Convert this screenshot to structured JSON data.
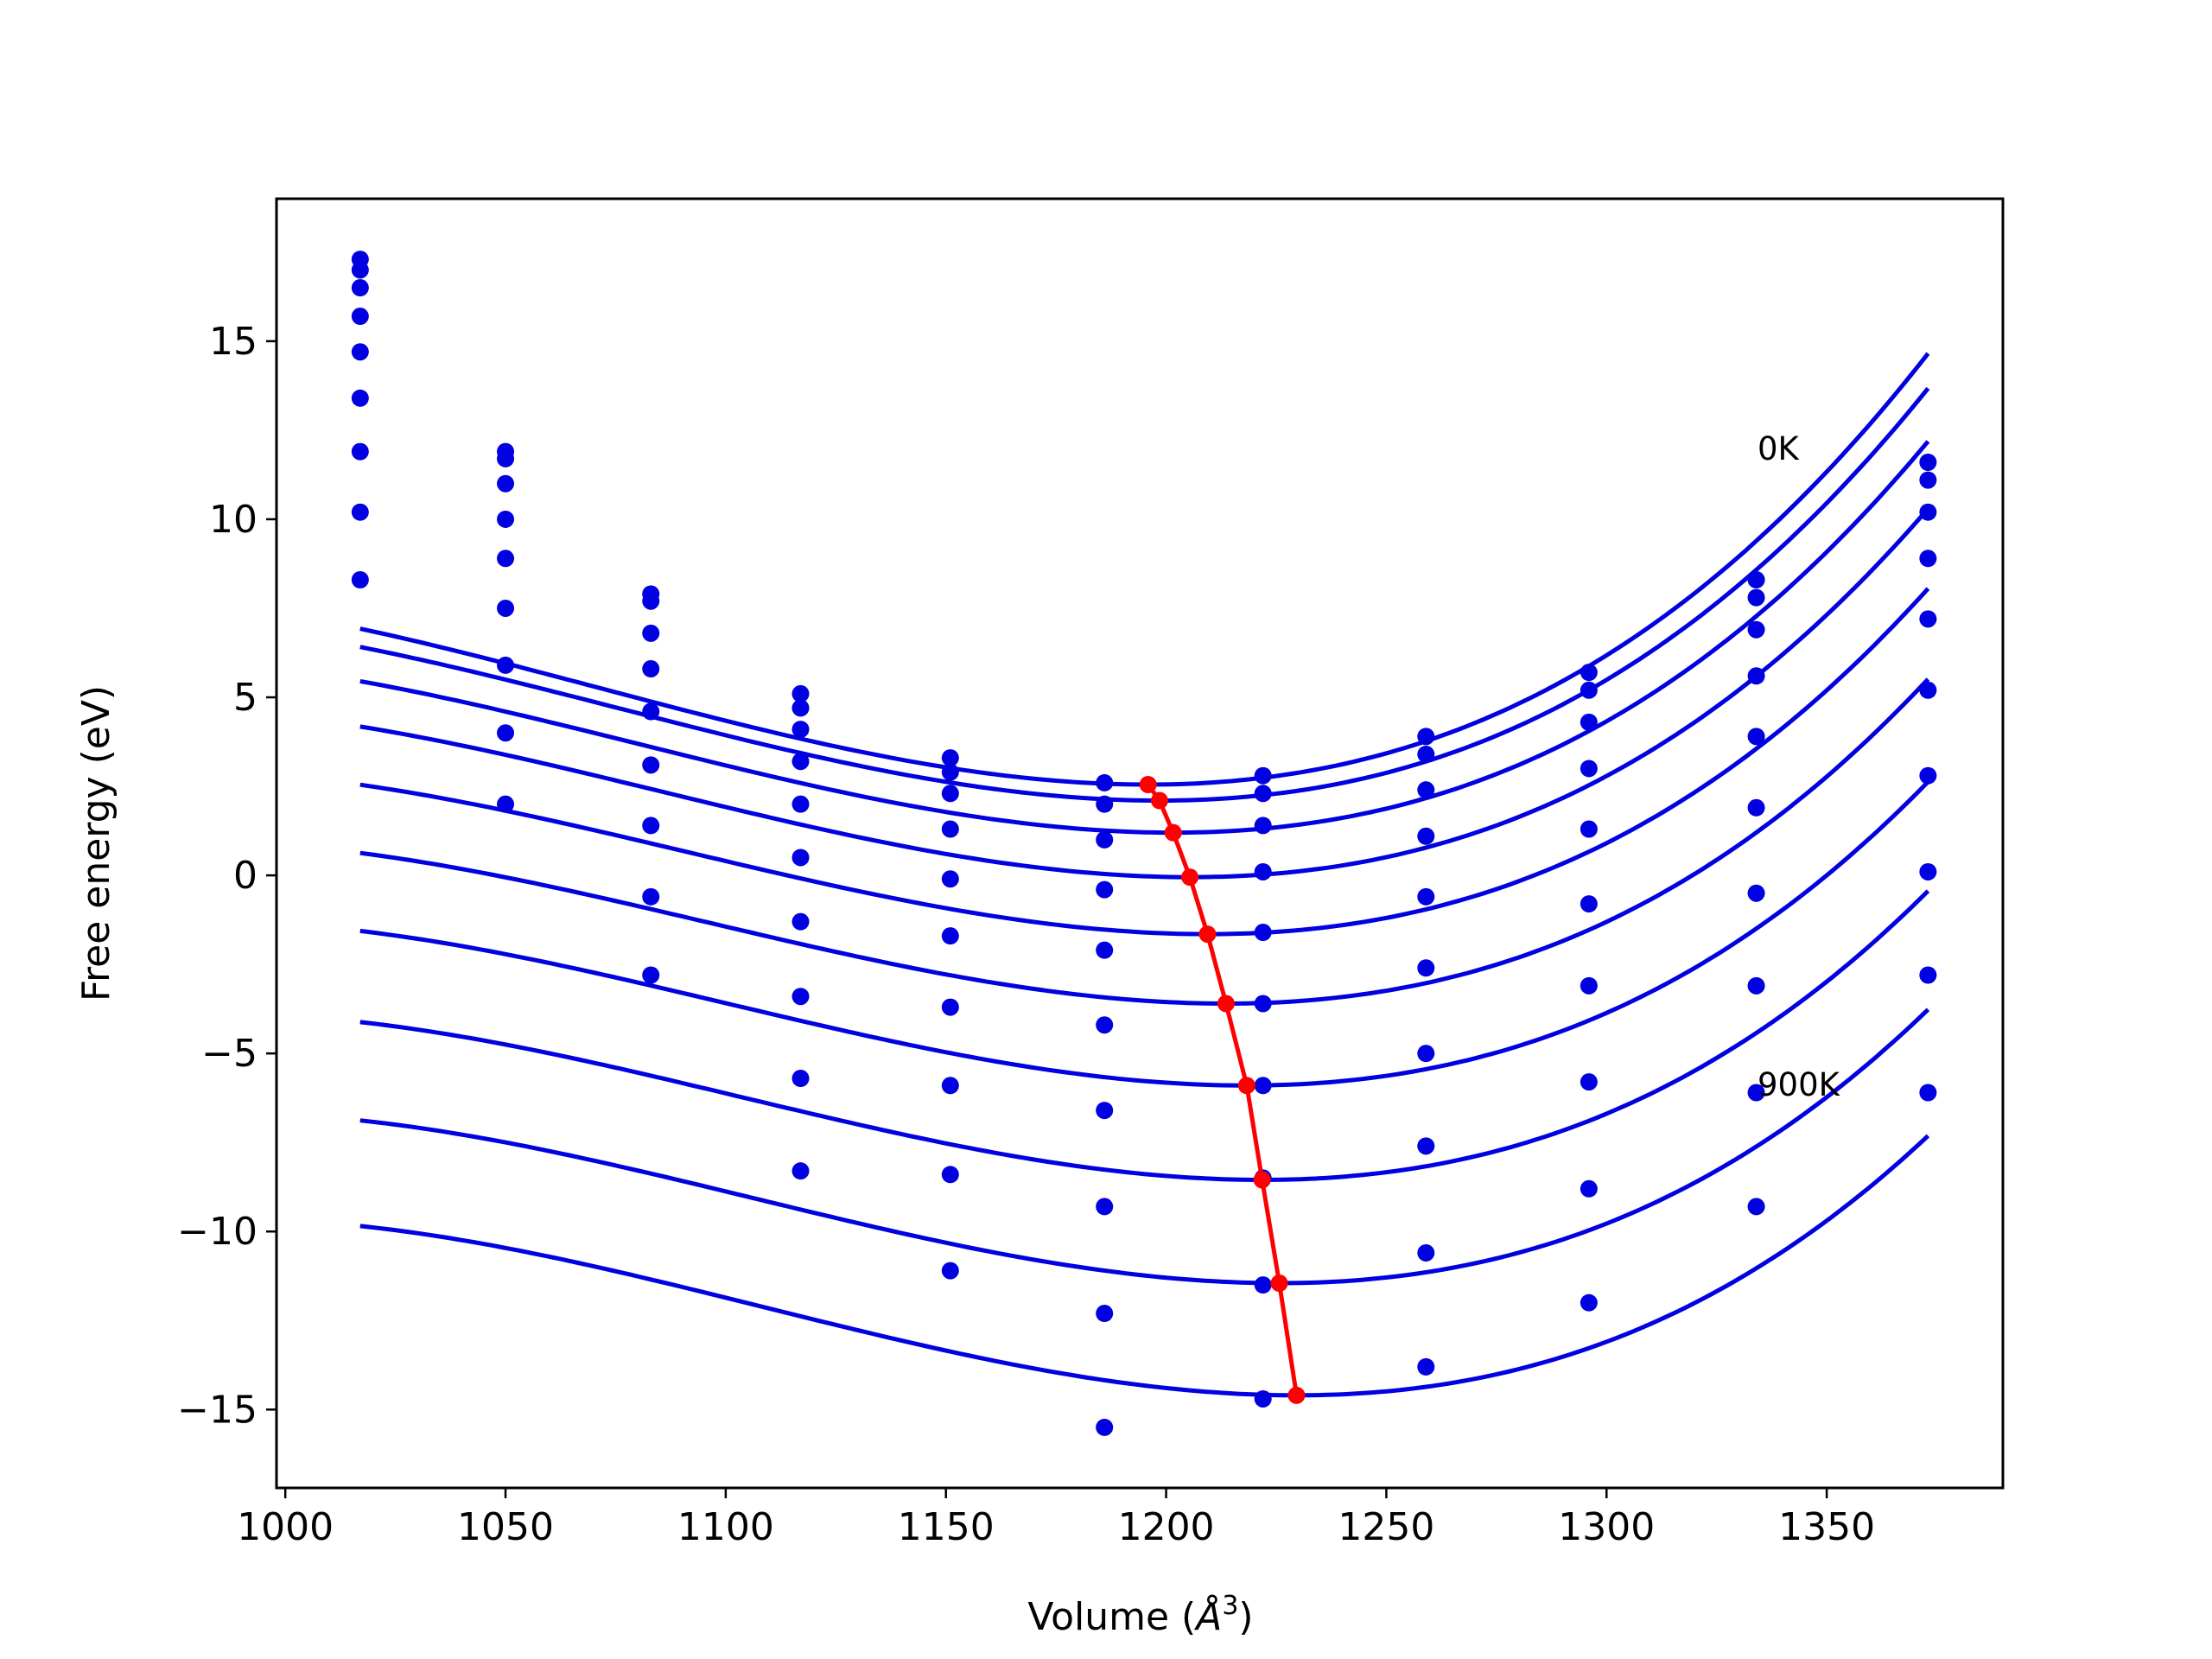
{
  "chart_data": {
    "type": "line",
    "title": "",
    "xlabel": "Volume ($\\AA^3$)",
    "xlabel_parts": {
      "prefix": "Volume (",
      "symbol": "Å",
      "exponent": "3",
      "suffix": ")"
    },
    "ylabel": "Free energy (eV)",
    "xlim": [
      998,
      1390
    ],
    "ylim": [
      -17.2,
      19.0
    ],
    "xticks": [
      1000,
      1050,
      1100,
      1150,
      1200,
      1250,
      1300,
      1350
    ],
    "yticks": [
      -15,
      -10,
      -5,
      0,
      5,
      10,
      15
    ],
    "ytick_labels": [
      "−15",
      "−10",
      "−5",
      "0",
      "5",
      "10",
      "15"
    ],
    "grid": false,
    "legend": "none",
    "colors": {
      "curves": "#0000e0",
      "points": "#0000e0",
      "minima": "#ff0000"
    },
    "annotations": [
      {
        "text": "0K",
        "x": 1334,
        "y": 11.8
      },
      {
        "text": "900K",
        "x": 1334,
        "y": -5.9
      }
    ],
    "volumes": [
      1017,
      1050,
      1083,
      1117,
      1151,
      1186,
      1222,
      1259,
      1296,
      1334,
      1373
    ],
    "series": [
      {
        "points": [
          17.3,
          11.9,
          7.9,
          5.1,
          3.3,
          2.6,
          2.8,
          3.9,
          5.7,
          8.3,
          11.6
        ],
        "fit": {
          "vmin": 1195.9,
          "fmin": 2.55,
          "b": 0.000262,
          "c": 7e-07
        }
      },
      {
        "points": [
          17.0,
          11.7,
          7.7,
          4.7,
          2.9,
          2.0,
          2.3,
          3.4,
          5.2,
          7.8,
          11.1
        ],
        "fit": {
          "vmin": 1198.5,
          "fmin": 2.1,
          "b": 0.000258,
          "c": 7e-07
        }
      },
      {
        "points": [
          16.5,
          11.0,
          6.8,
          4.1,
          2.3,
          1.0,
          1.4,
          2.4,
          4.3,
          6.9,
          10.2
        ],
        "fit": {
          "vmin": 1201.6,
          "fmin": 1.2,
          "b": 0.000254,
          "c": 7e-07
        }
      },
      {
        "points": [
          15.7,
          10.0,
          5.8,
          3.2,
          1.3,
          -0.4,
          0.1,
          1.1,
          3.0,
          5.6,
          8.9
        ],
        "fit": {
          "vmin": 1205.4,
          "fmin": -0.05,
          "b": 0.000251,
          "c": 7e-07
        }
      },
      {
        "points": [
          14.7,
          8.9,
          4.6,
          2.0,
          -0.1,
          -2.1,
          -1.6,
          -0.6,
          1.3,
          3.9,
          7.2
        ],
        "fit": {
          "vmin": 1209.4,
          "fmin": -1.65,
          "b": 0.000248,
          "c": 7e-07
        }
      },
      {
        "points": [
          13.4,
          7.5,
          3.1,
          0.5,
          -1.7,
          -4.2,
          -3.6,
          -2.6,
          -0.8,
          1.9,
          5.2
        ],
        "fit": {
          "vmin": 1213.6,
          "fmin": -3.6,
          "b": 0.000247,
          "c": 7e-07
        }
      },
      {
        "points": [
          11.9,
          5.9,
          1.4,
          -1.3,
          -3.7,
          -6.6,
          -5.9,
          -5.0,
          -3.1,
          -0.5,
          2.8
        ],
        "fit": {
          "vmin": 1218.3,
          "fmin": -5.9,
          "b": 0.000248,
          "c": 7e-07
        }
      },
      {
        "points": [
          10.2,
          4.0,
          -0.6,
          -3.4,
          -5.9,
          -9.3,
          -8.5,
          -7.6,
          -5.8,
          -3.1,
          0.1
        ],
        "fit": {
          "vmin": 1221.8,
          "fmin": -8.55,
          "b": 0.000249,
          "c": 7e-07
        }
      },
      {
        "points": [
          8.3,
          2.0,
          -2.8,
          -5.7,
          -8.4,
          -12.3,
          -11.5,
          -10.6,
          -8.8,
          -6.1,
          -2.8
        ],
        "fit": {
          "vmin": 1225.7,
          "fmin": -11.45,
          "b": 0.000251,
          "c": 7e-07
        }
      },
      {
        "points": [
          null,
          null,
          null,
          -8.3,
          -11.1,
          -15.5,
          -14.7,
          -13.8,
          -12.0,
          -9.3,
          -6.1
        ],
        "fit": {
          "vmin": 1229.6,
          "fmin": -14.6,
          "b": 0.000254,
          "c": 7e-07
        }
      }
    ],
    "minima": {
      "x": [
        1195.9,
        1198.5,
        1201.6,
        1205.4,
        1209.4,
        1213.6,
        1218.3,
        1221.8,
        1225.7,
        1229.6
      ],
      "y": [
        2.55,
        2.1,
        1.2,
        -0.05,
        -1.65,
        -3.6,
        -5.9,
        -8.55,
        -11.45,
        -14.6
      ]
    }
  }
}
